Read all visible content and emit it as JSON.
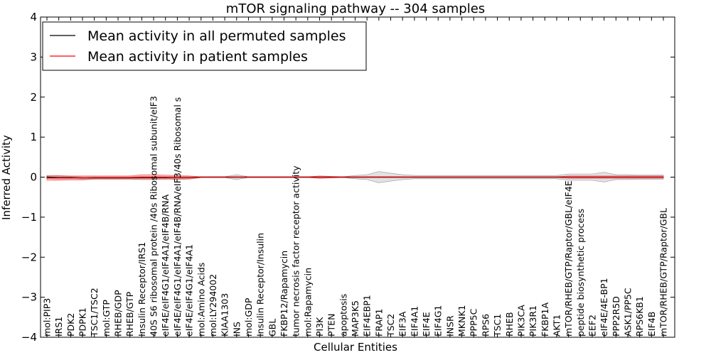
{
  "chart_data": {
    "type": "line",
    "title": "mTOR signaling pathway -- 304 samples",
    "xlabel": "Cellular Entities",
    "ylabel": "Inferred Activity",
    "ylim": [
      -4,
      4
    ],
    "yticks": [
      "−4",
      "−3",
      "−2",
      "−1",
      "0",
      "1",
      "2",
      "3",
      "4"
    ],
    "legend": {
      "placement": "top-left",
      "entries": [
        {
          "label": "Mean activity in all permuted samples",
          "color": "#000000"
        },
        {
          "label": "Mean activity in patient samples",
          "color": "#ff0000"
        }
      ]
    },
    "categories": [
      "mol:PIP3",
      "IRS1",
      "PDK2",
      "PDPK1",
      "TSC1/TSC2",
      "mol:GTP",
      "RHEB/GDP",
      "RHEB/GTP",
      "Insulin Receptor/IRS1",
      "40S S6 ribosomal protein /40s Ribosomal subunit/eIF3",
      "eIF4E/eIF4G1/eIF4A1/eIF4B/RNA",
      "eIF4E/eIF4G1/eIF4A1/eIF4B/RNA/eIF3/40s Ribosomal s",
      "eIF4E/eIF4G1/eIF4A1",
      "mol:Amino Acids",
      "mol:LY294002",
      "KIAA1303",
      "INS",
      "mol:GDP",
      "Insulin Receptor/Insulin",
      "GBL",
      "FKBP12/Rapamycin",
      "tumor necrosis factor receptor activity",
      "mol:Rapamycin",
      "PI3K",
      "PTEN",
      "apoptosis",
      "MAP3K5",
      "EIF4EBP1",
      "FRAP1",
      "TSC2",
      "EIF3A",
      "EIF4A1",
      "EIF4E",
      "EIF4G1",
      "INSR",
      "MKNK1",
      "PPP5C",
      "RPS6",
      "TSC1",
      "RHEB",
      "PIK3CA",
      "PIK3R1",
      "FKBP1A",
      "AKT1",
      "mTOR/RHEB/GTP/Raptor/GBL/eIF4E",
      "peptide biosynthetic process",
      "EEF2",
      "eIF4E/4E-BP1",
      "PPP2R5D",
      "ASK1/PP5C",
      "RPS6KB1",
      "EIF4B",
      "mTOR/RHEB/GTP/Raptor/GBL"
    ],
    "series": [
      {
        "name": "Mean activity in all permuted samples",
        "color": "#000000",
        "values": [
          0.0,
          -0.01,
          -0.01,
          -0.02,
          -0.02,
          -0.02,
          -0.02,
          -0.02,
          -0.01,
          -0.01,
          -0.01,
          -0.01,
          -0.01,
          0.0,
          0.0,
          0.0,
          0.0,
          0.0,
          0.0,
          0.0,
          0.0,
          0.0,
          0.0,
          0.0,
          0.0,
          0.0,
          0.0,
          0.0,
          0.0,
          0.0,
          0.0,
          0.0,
          0.0,
          0.0,
          0.0,
          0.0,
          0.0,
          0.0,
          0.0,
          0.0,
          0.0,
          0.0,
          0.0,
          0.0,
          0.0,
          0.0,
          0.0,
          0.0,
          0.0,
          0.0,
          0.0,
          0.0,
          0.0
        ],
        "band": [
          0.04,
          0.04,
          0.03,
          0.03,
          0.03,
          0.03,
          0.03,
          0.03,
          0.03,
          0.03,
          0.03,
          0.03,
          0.03,
          0.01,
          0.01,
          0.01,
          0.06,
          0.01,
          0.01,
          0.01,
          0.01,
          0.01,
          0.01,
          0.01,
          0.01,
          0.01,
          0.04,
          0.06,
          0.14,
          0.1,
          0.06,
          0.04,
          0.04,
          0.04,
          0.04,
          0.04,
          0.04,
          0.04,
          0.04,
          0.04,
          0.04,
          0.04,
          0.04,
          0.04,
          0.08,
          0.08,
          0.08,
          0.12,
          0.06,
          0.06,
          0.05,
          0.05,
          0.05
        ]
      },
      {
        "name": "Mean activity in patient samples",
        "color": "#ff0000",
        "values": [
          -0.02,
          -0.02,
          -0.02,
          -0.02,
          -0.01,
          -0.01,
          -0.01,
          -0.01,
          0.0,
          0.0,
          0.0,
          -0.01,
          -0.01,
          0.0,
          0.0,
          0.0,
          0.0,
          0.0,
          0.0,
          0.0,
          0.0,
          0.0,
          0.0,
          0.0,
          0.0,
          0.0,
          0.0,
          0.0,
          0.0,
          0.0,
          0.0,
          0.0,
          0.0,
          0.0,
          0.0,
          0.0,
          0.0,
          0.0,
          0.0,
          0.0,
          0.0,
          0.0,
          0.0,
          0.0,
          0.0,
          0.0,
          0.0,
          0.0,
          0.0,
          0.0,
          0.0,
          0.0,
          0.0
        ],
        "band": [
          0.06,
          0.06,
          0.05,
          0.05,
          0.04,
          0.04,
          0.04,
          0.04,
          0.06,
          0.06,
          0.05,
          0.05,
          0.04,
          0.01,
          0.01,
          0.01,
          0.01,
          0.01,
          0.01,
          0.01,
          0.01,
          0.01,
          0.01,
          0.03,
          0.02,
          0.01,
          0.01,
          0.01,
          0.01,
          0.01,
          0.01,
          0.01,
          0.01,
          0.01,
          0.01,
          0.01,
          0.01,
          0.01,
          0.01,
          0.01,
          0.01,
          0.01,
          0.01,
          0.01,
          0.03,
          0.03,
          0.03,
          0.03,
          0.03,
          0.03,
          0.03,
          0.03,
          0.03
        ]
      }
    ]
  }
}
